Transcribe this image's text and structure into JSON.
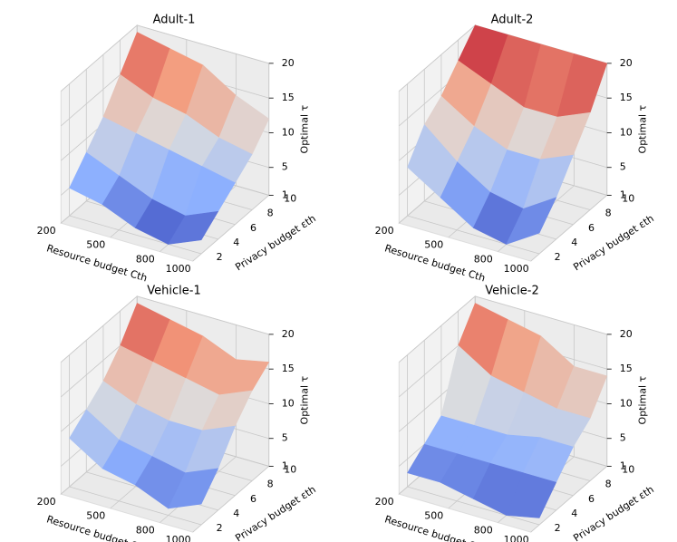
{
  "chart_data": [
    {
      "type": "surface",
      "title": "Adult-1",
      "xlabel": "Resource budget Cth",
      "ylabel": "Privacy budget εth",
      "zlabel": "Optimal τ",
      "colormap": "coolwarm",
      "x": [
        200,
        400,
        600,
        800,
        1000
      ],
      "y": [
        2,
        4,
        6,
        8,
        10
      ],
      "z": [
        [
          5,
          4,
          2,
          1,
          3
        ],
        [
          8,
          6,
          4,
          3,
          5
        ],
        [
          11,
          10,
          9,
          8,
          7
        ],
        [
          15,
          13,
          12,
          10,
          9
        ],
        [
          19,
          18,
          17,
          14,
          12
        ]
      ],
      "xlim": [
        200,
        1000
      ],
      "ylim": [
        1,
        10
      ],
      "zlim": [
        1,
        20
      ],
      "xticks": [
        200,
        500,
        800,
        1000
      ],
      "yticks": [
        2,
        4,
        6,
        8,
        10
      ],
      "zticks": [
        1,
        5,
        10,
        15,
        20
      ]
    },
    {
      "type": "surface",
      "title": "Adult-2",
      "xlabel": "Resource budget Cth",
      "ylabel": "Privacy budget εth",
      "zlabel": "Optimal τ",
      "colormap": "coolwarm",
      "x": [
        200,
        400,
        600,
        800,
        1000
      ],
      "y": [
        2,
        4,
        6,
        8,
        10
      ],
      "z": [
        [
          8,
          5,
          2,
          1,
          4
        ],
        [
          12,
          8,
          5,
          4,
          7
        ],
        [
          14,
          11,
          9,
          9,
          11
        ],
        [
          17,
          15,
          13,
          13,
          15
        ],
        [
          20,
          20,
          20,
          20,
          20
        ]
      ],
      "xlim": [
        200,
        1000
      ],
      "ylim": [
        1,
        10
      ],
      "zlim": [
        1,
        20
      ],
      "xticks": [
        200,
        500,
        800,
        1000
      ],
      "yticks": [
        2,
        4,
        6,
        8,
        10
      ],
      "zticks": [
        1,
        5,
        10,
        15,
        20
      ]
    },
    {
      "type": "surface",
      "title": "Vehicle-1",
      "xlabel": "Resource budget Cth",
      "ylabel": "Privacy budget εth",
      "zlabel": "Optimal τ",
      "colormap": "coolwarm",
      "x": [
        200,
        400,
        600,
        800,
        1000
      ],
      "y": [
        2,
        4,
        6,
        8,
        10
      ],
      "z": [
        [
          8,
          5,
          4,
          2,
          4
        ],
        [
          10,
          7,
          6,
          5,
          7
        ],
        [
          12,
          10,
          9,
          9,
          11
        ],
        [
          15,
          14,
          13,
          12,
          14
        ],
        [
          19,
          18,
          17,
          15,
          16
        ]
      ],
      "xlim": [
        200,
        1000
      ],
      "ylim": [
        1,
        10
      ],
      "zlim": [
        1,
        20
      ],
      "xticks": [
        200,
        500,
        800,
        1000
      ],
      "yticks": [
        2,
        4,
        6,
        8,
        10
      ],
      "zticks": [
        1,
        5,
        10,
        15,
        20
      ]
    },
    {
      "type": "surface",
      "title": "Vehicle-2",
      "xlabel": "Resource budget Cth",
      "ylabel": "Privacy budget εth",
      "zlabel": "Optimal τ",
      "colormap": "coolwarm",
      "x": [
        200,
        400,
        600,
        800,
        1000
      ],
      "y": [
        2,
        4,
        6,
        8,
        10
      ],
      "z": [
        [
          3,
          3,
          2,
          1,
          2
        ],
        [
          5,
          5,
          5,
          5,
          5
        ],
        [
          7,
          7,
          7,
          8,
          8
        ],
        [
          15,
          12,
          11,
          10,
          10
        ],
        [
          19,
          18,
          17,
          14,
          14
        ]
      ],
      "xlim": [
        200,
        1000
      ],
      "ylim": [
        1,
        10
      ],
      "zlim": [
        1,
        20
      ],
      "xticks": [
        200,
        500,
        800,
        1000
      ],
      "yticks": [
        2,
        4,
        6,
        8,
        10
      ],
      "zticks": [
        1,
        5,
        10,
        15,
        20
      ]
    }
  ]
}
